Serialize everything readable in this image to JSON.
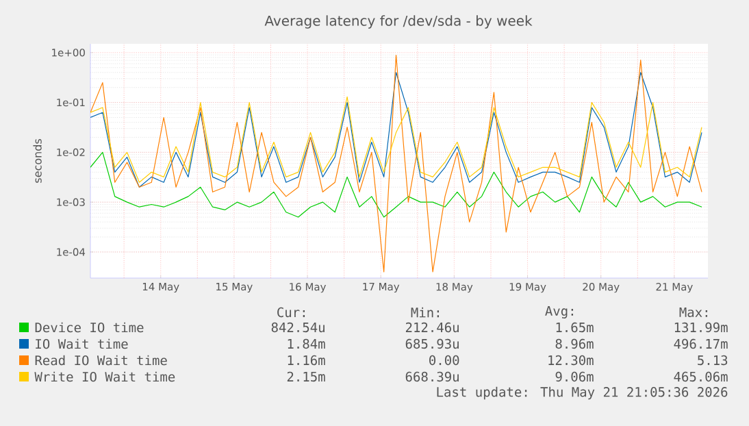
{
  "chart_data": {
    "type": "line",
    "title": "Average latency for /dev/sda - by week",
    "ylabel": "seconds",
    "log": true,
    "grid": true,
    "legend": "bottom",
    "ylim": [
      3e-05,
      1.5
    ],
    "yticks": [
      {
        "value": 0.0001,
        "label": "1e-04"
      },
      {
        "value": 0.001,
        "label": "1e-03"
      },
      {
        "value": 0.01,
        "label": "1e-02"
      },
      {
        "value": 0.1,
        "label": "1e-01"
      },
      {
        "value": 1,
        "label": "1e+00"
      }
    ],
    "xlim": [
      "2026-05-13T13:00",
      "2026-05-21T23:00"
    ],
    "xticks": [
      {
        "value": "2026-05-14T12:00",
        "label": "14 May"
      },
      {
        "value": "2026-05-15T12:00",
        "label": "15 May"
      },
      {
        "value": "2026-05-16T12:00",
        "label": "16 May"
      },
      {
        "value": "2026-05-17T12:00",
        "label": "17 May"
      },
      {
        "value": "2026-05-18T12:00",
        "label": "18 May"
      },
      {
        "value": "2026-05-19T12:00",
        "label": "19 May"
      },
      {
        "value": "2026-05-20T12:00",
        "label": "20 May"
      },
      {
        "value": "2026-05-21T12:00",
        "label": "21 May"
      },
      {
        "value": "2026-05-14T00:00",
        "label": null
      },
      {
        "value": "2026-05-15T00:00",
        "label": null
      },
      {
        "value": "2026-05-16T00:00",
        "label": null
      },
      {
        "value": "2026-05-17T00:00",
        "label": null
      },
      {
        "value": "2026-05-18T00:00",
        "label": null
      },
      {
        "value": "2026-05-19T00:00",
        "label": null
      },
      {
        "value": "2026-05-20T00:00",
        "label": null
      },
      {
        "value": "2026-05-21T00:00",
        "label": null
      }
    ],
    "x": [
      "2026-05-13T13:00",
      "2026-05-13T17:00",
      "2026-05-13T21:00",
      "2026-05-14T01:00",
      "2026-05-14T05:00",
      "2026-05-14T09:00",
      "2026-05-14T13:00",
      "2026-05-14T17:00",
      "2026-05-14T21:00",
      "2026-05-15T01:00",
      "2026-05-15T05:00",
      "2026-05-15T09:00",
      "2026-05-15T13:00",
      "2026-05-15T17:00",
      "2026-05-15T21:00",
      "2026-05-16T01:00",
      "2026-05-16T05:00",
      "2026-05-16T09:00",
      "2026-05-16T13:00",
      "2026-05-16T17:00",
      "2026-05-16T21:00",
      "2026-05-17T01:00",
      "2026-05-17T05:00",
      "2026-05-17T09:00",
      "2026-05-17T13:00",
      "2026-05-17T17:00",
      "2026-05-17T21:00",
      "2026-05-18T01:00",
      "2026-05-18T05:00",
      "2026-05-18T09:00",
      "2026-05-18T13:00",
      "2026-05-18T17:00",
      "2026-05-18T21:00",
      "2026-05-19T01:00",
      "2026-05-19T05:00",
      "2026-05-19T09:00",
      "2026-05-19T13:00",
      "2026-05-19T17:00",
      "2026-05-19T21:00",
      "2026-05-20T01:00",
      "2026-05-20T05:00",
      "2026-05-20T09:00",
      "2026-05-20T13:00",
      "2026-05-20T17:00",
      "2026-05-20T21:00",
      "2026-05-21T01:00",
      "2026-05-21T05:00",
      "2026-05-21T09:00",
      "2026-05-21T13:00",
      "2026-05-21T17:00",
      "2026-05-21T21:00"
    ],
    "series": [
      {
        "name": "Device IO time",
        "color": "#00cc00",
        "values": [
          0.005,
          0.01,
          0.0013,
          0.001,
          0.0008,
          0.0009,
          0.0008,
          0.001,
          0.0013,
          0.002,
          0.0008,
          0.0007,
          0.001,
          0.0008,
          0.001,
          0.0016,
          0.00063,
          0.0005,
          0.0008,
          0.001,
          0.00063,
          0.0032,
          0.0008,
          0.0013,
          0.0005,
          0.0008,
          0.0013,
          0.001,
          0.001,
          0.0008,
          0.0016,
          0.0008,
          0.0013,
          0.004,
          0.0016,
          0.0008,
          0.0013,
          0.0016,
          0.001,
          0.0013,
          0.00063,
          0.0032,
          0.0013,
          0.0008,
          0.0025,
          0.001,
          0.0013,
          0.0008,
          0.001,
          0.001,
          0.0008
        ]
      },
      {
        "name": "IO Wait time",
        "color": "#0066b3",
        "values": [
          0.05,
          0.063,
          0.004,
          0.008,
          0.002,
          0.0032,
          0.0025,
          0.01,
          0.0032,
          0.063,
          0.0032,
          0.0025,
          0.004,
          0.079,
          0.0032,
          0.013,
          0.0025,
          0.0032,
          0.02,
          0.0032,
          0.008,
          0.1,
          0.0025,
          0.016,
          0.0032,
          0.4,
          0.063,
          0.0032,
          0.0025,
          0.005,
          0.013,
          0.0025,
          0.004,
          0.063,
          0.01,
          0.0025,
          0.0032,
          0.004,
          0.004,
          0.0032,
          0.0025,
          0.079,
          0.032,
          0.004,
          0.013,
          0.4,
          0.079,
          0.0032,
          0.004,
          0.0025,
          0.025
        ]
      },
      {
        "name": "Read IO Wait time",
        "color": "#ff8000",
        "values": [
          0.063,
          0.25,
          0.0025,
          0.0063,
          0.002,
          0.0025,
          0.05,
          0.002,
          0.01,
          0.079,
          0.0016,
          0.002,
          0.04,
          0.0016,
          0.025,
          0.0025,
          0.0013,
          0.002,
          0.02,
          0.0016,
          0.0025,
          0.032,
          0.0016,
          0.01,
          4e-05,
          0.89,
          0.001,
          0.025,
          4e-05,
          0.0013,
          0.01,
          0.0004,
          0.0025,
          0.16,
          0.00025,
          0.005,
          0.00063,
          0.0025,
          0.01,
          0.0013,
          0.002,
          0.04,
          0.001,
          0.0032,
          0.0016,
          0.71,
          0.0016,
          0.01,
          0.0013,
          0.013,
          0.0016
        ]
      },
      {
        "name": "Write IO Wait time",
        "color": "#ffcc00",
        "values": [
          0.063,
          0.079,
          0.005,
          0.01,
          0.0025,
          0.004,
          0.0032,
          0.013,
          0.004,
          0.1,
          0.004,
          0.0032,
          0.005,
          0.1,
          0.004,
          0.016,
          0.0032,
          0.004,
          0.025,
          0.004,
          0.01,
          0.13,
          0.0032,
          0.02,
          0.004,
          0.025,
          0.079,
          0.004,
          0.0032,
          0.0063,
          0.016,
          0.0032,
          0.005,
          0.079,
          0.013,
          0.0032,
          0.004,
          0.005,
          0.005,
          0.004,
          0.0032,
          0.1,
          0.04,
          0.005,
          0.016,
          0.005,
          0.1,
          0.004,
          0.005,
          0.0032,
          0.032
        ]
      }
    ],
    "annotations": [
      "Cur:",
      "Min:",
      "Avg:",
      "Max:",
      "842.54u",
      "212.46u",
      "1.65m",
      "131.99m",
      "1.84m",
      "685.93u",
      "8.96m",
      "496.17m",
      "1.16m",
      "0.00",
      "12.30m",
      "5.13",
      "2.15m",
      "668.39u",
      "9.06m",
      "465.06m",
      "Last update: Thu May 21 21:05:36 2026"
    ]
  }
}
